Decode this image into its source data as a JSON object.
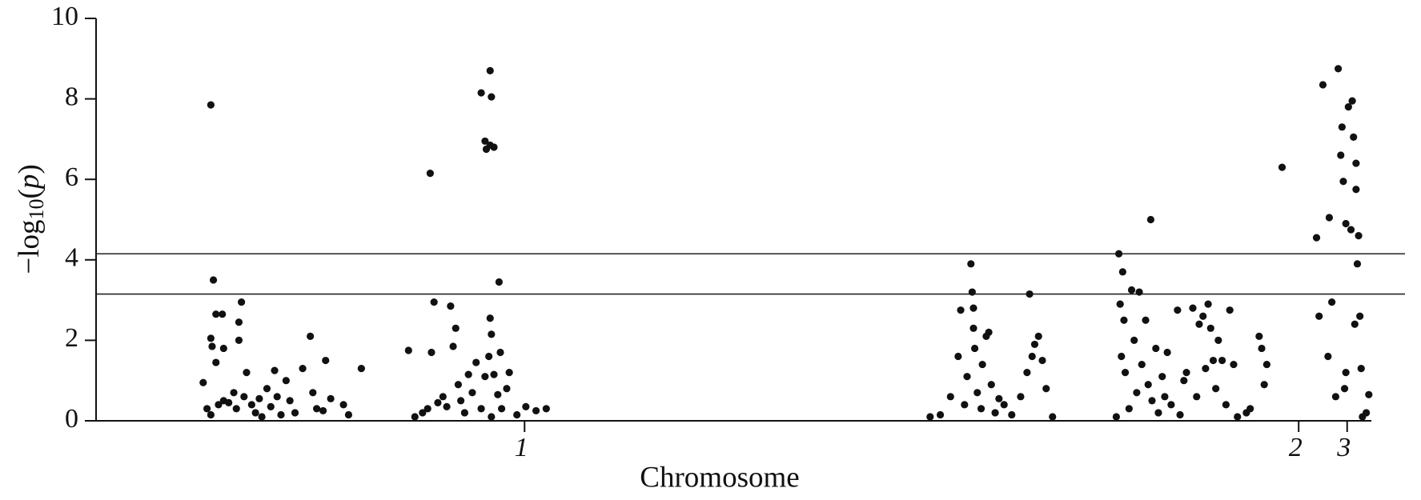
{
  "chart_data": {
    "type": "scatter",
    "xlabel": "Chromosome",
    "ylabel": {
      "base": "−log",
      "sub": "10",
      "open": "(",
      "var": "p",
      "close": ")"
    },
    "xlim": [
      0,
      100
    ],
    "ylim": [
      0,
      10
    ],
    "yticks": [
      0,
      2,
      4,
      6,
      8,
      10
    ],
    "xticks": [
      {
        "value": 33.6,
        "label": "1"
      },
      {
        "value": 94.3,
        "label": "2"
      },
      {
        "value": 98.1,
        "label": "3"
      }
    ],
    "hlines": [
      4.15,
      3.15
    ],
    "color": "#111111",
    "x": [
      9.0,
      9.2,
      9.4,
      9.9,
      9.0,
      9.1,
      10.0,
      9.4,
      11.4,
      11.2,
      11.2,
      8.4,
      8.7,
      9.0,
      9.6,
      10.0,
      10.4,
      10.8,
      11.0,
      11.6,
      11.8,
      12.2,
      12.5,
      12.8,
      13.0,
      13.4,
      13.7,
      14.0,
      14.2,
      14.5,
      14.9,
      15.2,
      15.6,
      16.2,
      16.8,
      17.0,
      17.3,
      17.8,
      18.0,
      18.4,
      19.4,
      19.8,
      20.8,
      24.5,
      25.0,
      25.6,
      26.0,
      26.3,
      26.5,
      26.8,
      27.2,
      27.5,
      27.8,
      28.0,
      28.2,
      28.4,
      28.6,
      28.9,
      29.2,
      29.5,
      29.8,
      30.2,
      30.5,
      30.8,
      31.0,
      30.2,
      31.0,
      30.9,
      30.5,
      30.6,
      30.9,
      31.2,
      30.9,
      31.0,
      31.2,
      31.5,
      31.7,
      31.8,
      32.2,
      32.4,
      33.0,
      33.7,
      34.5,
      35.3,
      26.2,
      31.6,
      65.4,
      66.2,
      67.0,
      67.6,
      67.8,
      68.1,
      68.3,
      68.6,
      68.7,
      68.8,
      68.8,
      68.9,
      69.1,
      69.4,
      69.5,
      69.8,
      70.0,
      70.2,
      70.5,
      70.8,
      71.2,
      71.8,
      72.5,
      73.0,
      73.2,
      73.4,
      73.6,
      73.9,
      74.2,
      74.5,
      75.0,
      80.0,
      80.2,
      80.3,
      80.5,
      80.6,
      80.4,
      80.7,
      81.0,
      81.2,
      81.4,
      81.8,
      81.6,
      82.0,
      82.3,
      82.5,
      82.7,
      82.8,
      83.1,
      83.3,
      83.6,
      83.8,
      84.0,
      84.3,
      84.8,
      85.0,
      85.3,
      85.5,
      86.0,
      86.3,
      86.5,
      86.8,
      87.0,
      87.2,
      87.4,
      87.6,
      87.8,
      88.0,
      88.3,
      88.6,
      88.9,
      89.2,
      89.5,
      90.2,
      90.5,
      91.2,
      91.4,
      91.6,
      91.8,
      93.0,
      95.7,
      95.9,
      96.2,
      96.6,
      96.7,
      96.9,
      97.2,
      97.4,
      97.6,
      97.7,
      97.8,
      97.9,
      98.0,
      98.0,
      98.2,
      98.4,
      98.5,
      98.6,
      98.7,
      98.8,
      98.8,
      98.9,
      99.0,
      99.1,
      99.2,
      99.3,
      99.6,
      99.8
    ],
    "values": [
      7.85,
      3.5,
      2.65,
      2.65,
      2.05,
      1.85,
      1.8,
      1.45,
      2.95,
      2.45,
      2.0,
      0.95,
      0.3,
      0.15,
      0.4,
      0.5,
      0.45,
      0.7,
      0.3,
      0.6,
      1.2,
      0.4,
      0.2,
      0.55,
      0.1,
      0.8,
      0.35,
      1.25,
      0.6,
      0.15,
      1.0,
      0.5,
      0.2,
      1.3,
      2.1,
      0.7,
      0.3,
      0.25,
      1.5,
      0.55,
      0.4,
      0.15,
      1.3,
      1.75,
      0.1,
      0.2,
      0.3,
      1.7,
      2.95,
      0.45,
      0.6,
      0.35,
      2.85,
      1.85,
      2.3,
      0.9,
      0.5,
      0.2,
      1.15,
      0.7,
      1.45,
      0.3,
      1.1,
      1.6,
      0.1,
      8.15,
      8.05,
      8.7,
      6.95,
      6.75,
      6.85,
      6.8,
      2.55,
      2.15,
      1.15,
      0.65,
      1.7,
      0.3,
      0.8,
      1.2,
      0.15,
      0.35,
      0.25,
      0.3,
      6.15,
      3.45,
      0.1,
      0.15,
      0.6,
      1.6,
      2.75,
      0.4,
      1.1,
      3.9,
      3.2,
      2.8,
      2.3,
      1.8,
      0.7,
      0.3,
      1.4,
      2.1,
      2.2,
      0.9,
      0.2,
      0.55,
      0.4,
      0.15,
      0.6,
      1.2,
      3.15,
      1.6,
      1.9,
      2.1,
      1.5,
      0.8,
      0.1,
      0.1,
      4.15,
      2.9,
      3.7,
      2.5,
      1.6,
      1.2,
      0.3,
      3.25,
      2.0,
      3.2,
      0.7,
      1.4,
      2.5,
      0.9,
      5.0,
      0.5,
      1.8,
      0.2,
      1.1,
      0.6,
      1.7,
      0.4,
      2.75,
      0.15,
      1.0,
      1.2,
      2.8,
      0.6,
      2.4,
      2.6,
      1.3,
      2.9,
      2.3,
      1.5,
      0.8,
      2.0,
      1.5,
      0.4,
      2.75,
      1.4,
      0.1,
      0.2,
      0.3,
      2.1,
      1.8,
      0.9,
      1.4,
      6.3,
      4.55,
      2.6,
      8.35,
      1.6,
      5.05,
      2.95,
      0.6,
      8.75,
      6.6,
      7.3,
      5.95,
      0.8,
      1.2,
      4.9,
      7.8,
      4.75,
      7.95,
      7.05,
      2.4,
      6.4,
      5.75,
      3.9,
      4.6,
      2.6,
      1.3,
      0.1,
      0.2,
      0.65
    ]
  }
}
